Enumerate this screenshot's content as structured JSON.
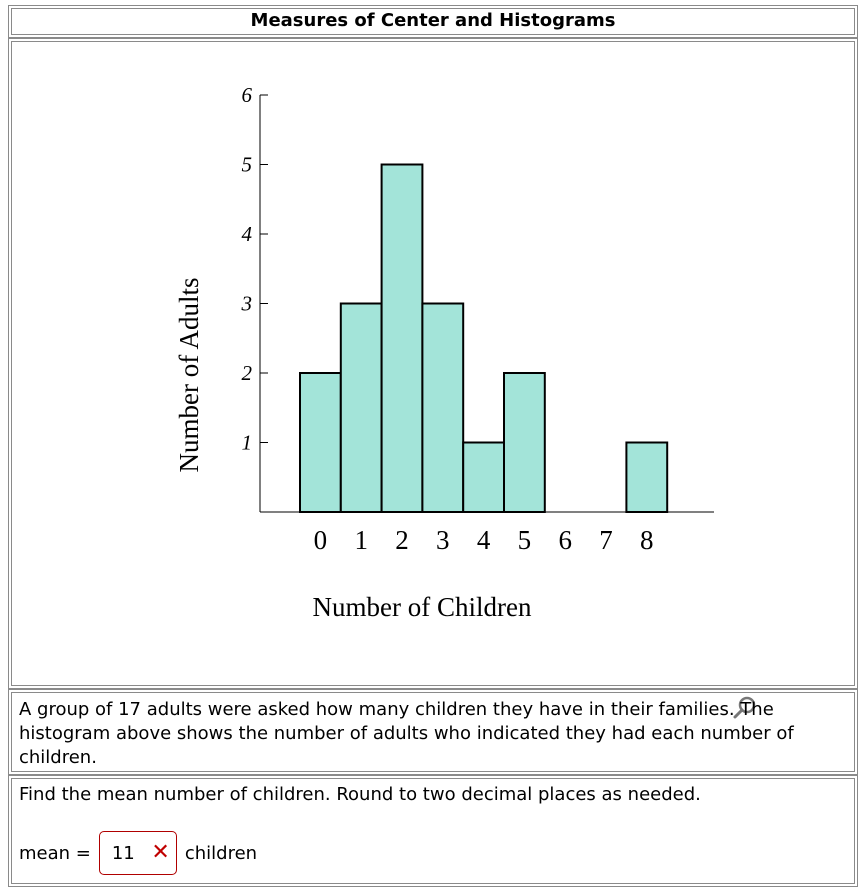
{
  "header": {
    "title": "Measures of Center and Histograms"
  },
  "chart_data": {
    "type": "bar",
    "categories": [
      "0",
      "1",
      "2",
      "3",
      "4",
      "5",
      "6",
      "7",
      "8"
    ],
    "values": [
      2,
      3,
      5,
      3,
      1,
      2,
      0,
      0,
      1
    ],
    "xlabel": "Number of Children",
    "ylabel": "Number of Adults",
    "ylim": [
      0,
      6
    ],
    "yticks": [
      "1",
      "2",
      "3",
      "4",
      "5",
      "6"
    ],
    "bar_color": "#a3e4d9",
    "bar_edge_color": "#000000",
    "grid": false
  },
  "description": "A group of 17 adults were asked how many children they have in their families. The histogram above shows the number of adults who indicated they had each number of children.",
  "question": {
    "prompt": "Find the mean number of children. Round to two decimal places as needed.",
    "answer_label": "mean =",
    "answer_value": "11",
    "answer_units": "children",
    "status": "incorrect"
  },
  "icons": {
    "zoom": "magnifier-icon",
    "wrong": "wrong-x-icon"
  },
  "colors": {
    "error": "#c00000"
  }
}
